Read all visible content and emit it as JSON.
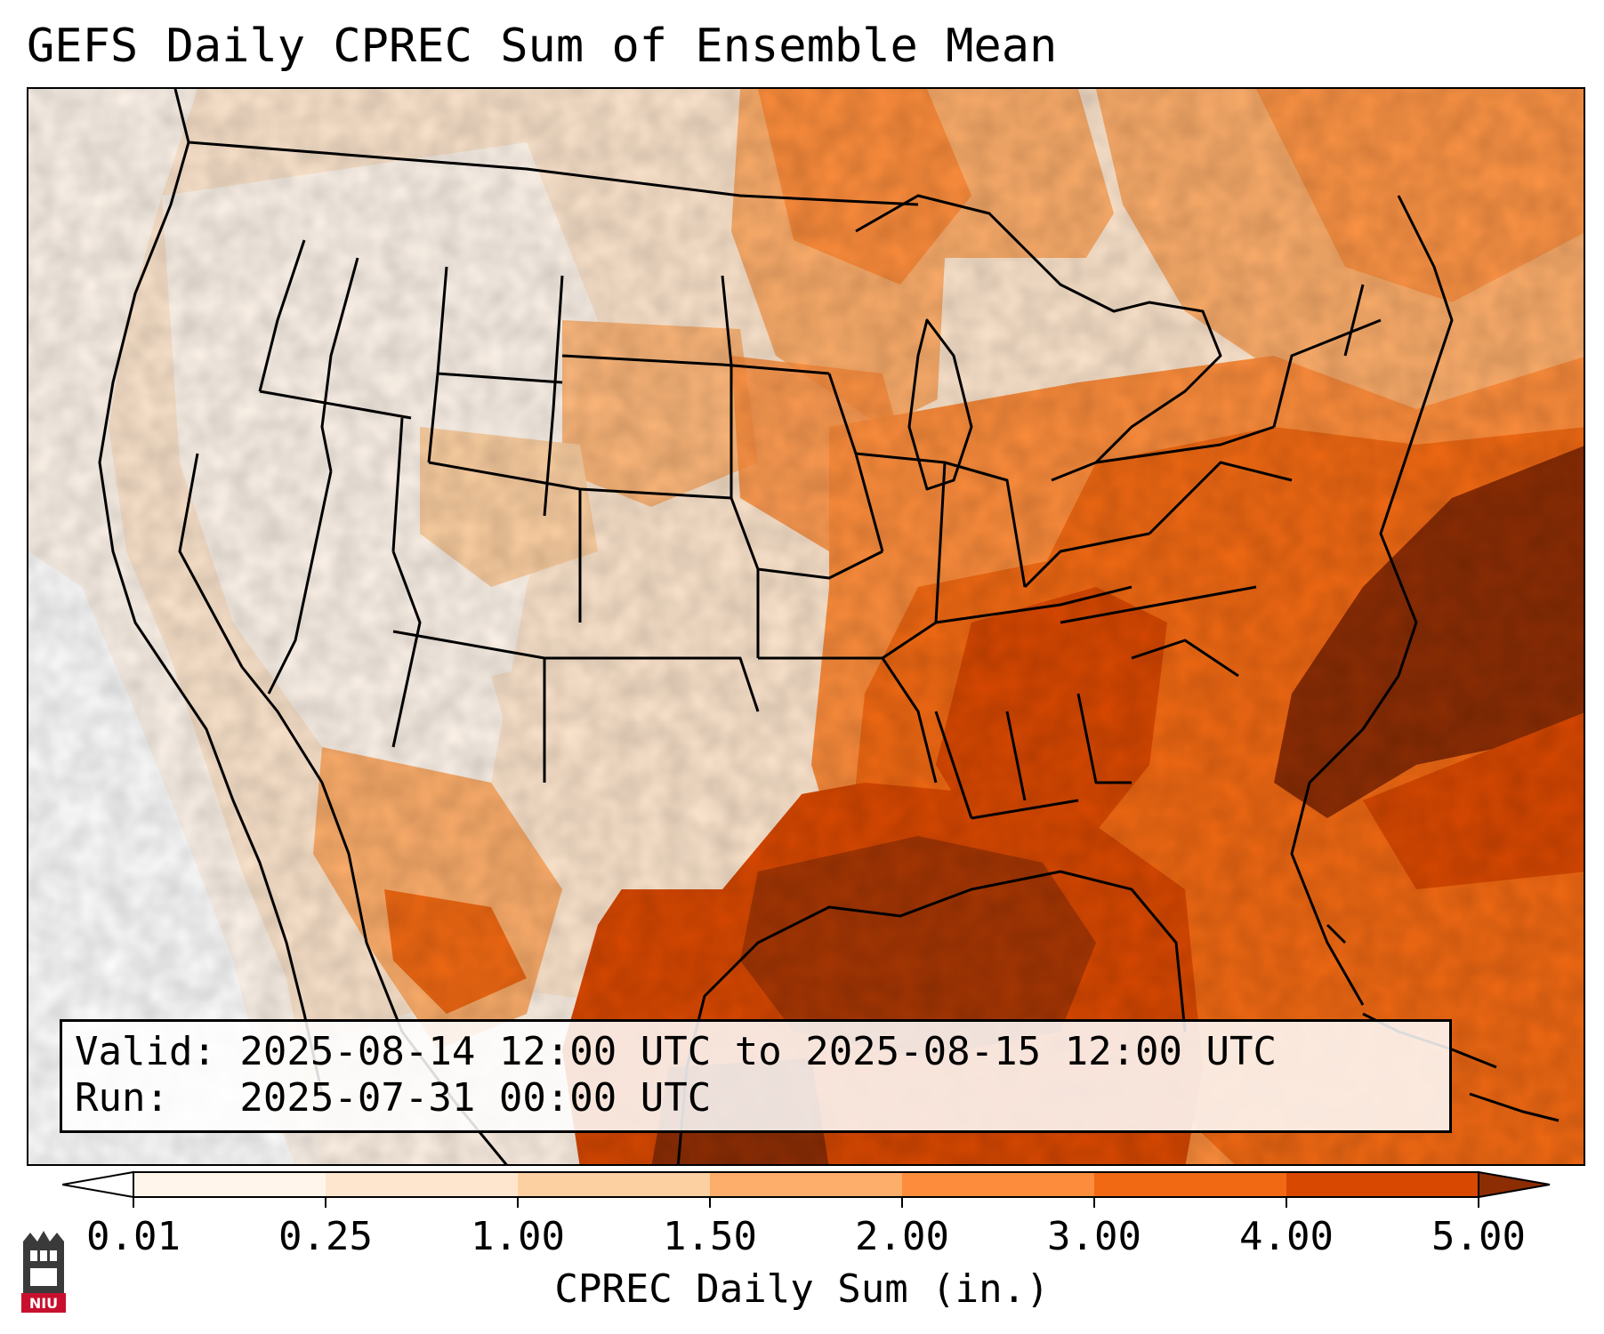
{
  "title": "GEFS Daily CPREC Sum of Ensemble Mean",
  "info": {
    "valid": "Valid: 2025-08-14 12:00 UTC to 2025-08-15 12:00 UTC",
    "run": "Run:   2025-07-31 00:00 UTC"
  },
  "colorbar": {
    "label": "CPREC Daily Sum (in.)",
    "ticks": [
      "0.01",
      "0.25",
      "1.00",
      "1.50",
      "2.00",
      "3.00",
      "4.00",
      "5.00"
    ],
    "colors": [
      "#fff5eb",
      "#fee6ce",
      "#fdd0a2",
      "#fdae6b",
      "#fd8d3c",
      "#f16913",
      "#d94801",
      "#8c2d04"
    ],
    "under_color": "#ffffff",
    "over_color": "#7f2704"
  },
  "logo": {
    "text": "NIU",
    "color": "#c8102e"
  },
  "map": {
    "region": "Contiguous United States",
    "heaviest_area": "Southeast coast and Gulf of Mexico"
  }
}
